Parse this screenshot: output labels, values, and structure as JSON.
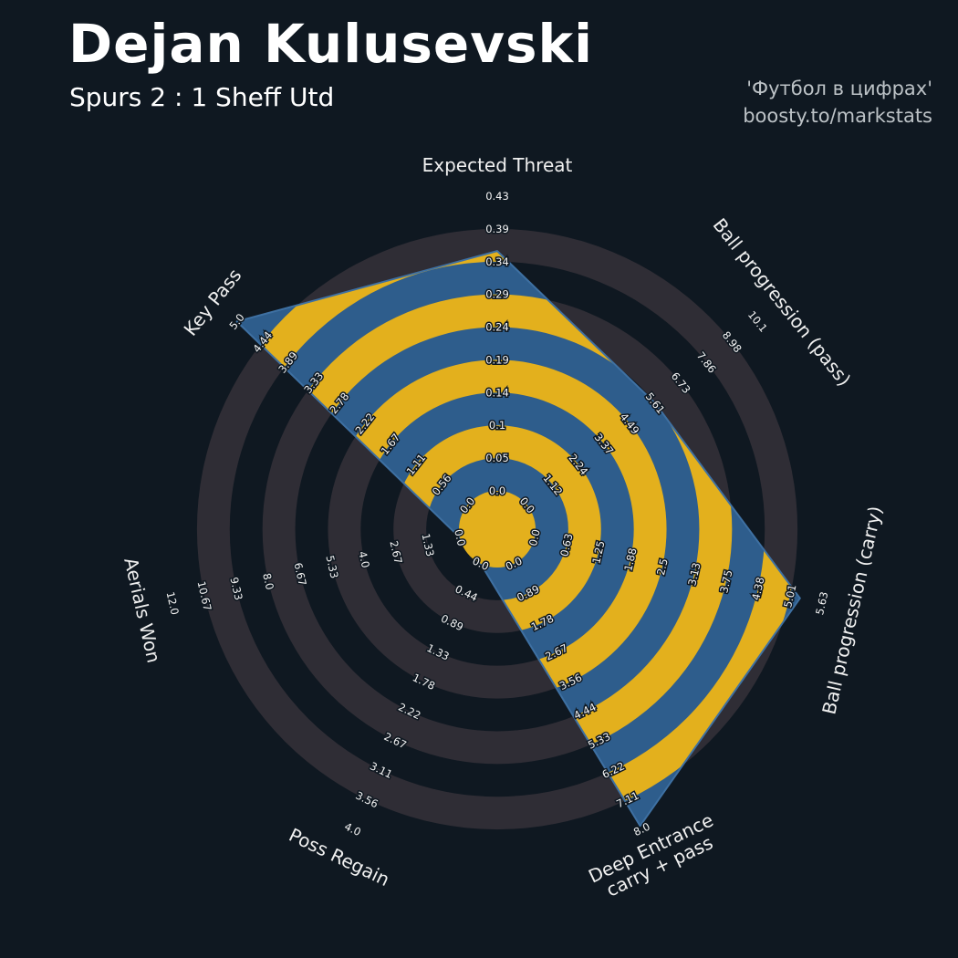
{
  "header": {
    "title": "Dejan Kulusevski",
    "subtitle": "Spurs 2 : 1 Sheff Utd",
    "watermark_line1": "'Футбол в цифрах'",
    "watermark_line2": "boosty.to/markstats"
  },
  "chart_data": {
    "type": "radar",
    "title": "Dejan Kulusevski — match radar",
    "legend": "none",
    "grid": "concentric-rings",
    "num_rings": 9,
    "colors": {
      "background": "#0f1821",
      "ring": "#2f2d35",
      "radar_fill": "#2e5d8c",
      "radar_edge": "#3e70a2",
      "radar_rings": "#e3b01d",
      "center_circle": "#e3b01d",
      "tick_text": "#f5f5f5",
      "axis_text": "#f0f0f0"
    },
    "axes": [
      {
        "label": "Expected Threat",
        "label_lines": [
          "Expected Threat"
        ],
        "min": 0,
        "max": 0.43,
        "value": 0.35,
        "ticks": [
          "0.0",
          "0.05",
          "0.1",
          "0.14",
          "0.19",
          "0.24",
          "0.29",
          "0.34",
          "0.39",
          "0.43"
        ]
      },
      {
        "label": "Ball progression (pass)",
        "label_lines": [
          "Ball progression (pass)"
        ],
        "min": 0,
        "max": 10.1,
        "value": 5.61,
        "ticks": [
          "0.0",
          "1.12",
          "2.24",
          "3.37",
          "4.49",
          "5.61",
          "6.73",
          "7.86",
          "8.98",
          "10.1"
        ]
      },
      {
        "label": "Ball progression (carry)",
        "label_lines": [
          "Ball progression (carry)"
        ],
        "min": 0,
        "max": 5.63,
        "value": 5.2,
        "ticks": [
          "0.0",
          "0.63",
          "1.25",
          "1.88",
          "2.5",
          "3.13",
          "3.75",
          "4.38",
          "5.01",
          "5.63"
        ]
      },
      {
        "label": "Deep Entrance carry + pass",
        "label_lines": [
          "Deep Entrance",
          "carry + pass"
        ],
        "min": 0,
        "max": 8.0,
        "value": 7.9,
        "ticks": [
          "0.0",
          "0.89",
          "1.78",
          "2.67",
          "3.56",
          "4.44",
          "5.33",
          "6.22",
          "7.11",
          "8.0"
        ]
      },
      {
        "label": "Poss Regain",
        "label_lines": [
          "Poss Regain"
        ],
        "min": 0,
        "max": 4.0,
        "value": 0.0,
        "ticks": [
          "0.0",
          "0.44",
          "0.89",
          "1.33",
          "1.78",
          "2.22",
          "2.67",
          "3.11",
          "3.56",
          "4.0"
        ]
      },
      {
        "label": "Aerials Won",
        "label_lines": [
          "Aerials Won"
        ],
        "min": 0,
        "max": 12.0,
        "value": 0.0,
        "ticks": [
          "0.0",
          "1.33",
          "2.67",
          "4.0",
          "5.33",
          "6.67",
          "8.0",
          "9.33",
          "10.67",
          "12.0"
        ]
      },
      {
        "label": "Key Pass",
        "label_lines": [
          "Key Pass"
        ],
        "min": 0,
        "max": 5.0,
        "value": 5.0,
        "ticks": [
          "0.0",
          "0.56",
          "1.11",
          "1.67",
          "2.22",
          "2.78",
          "3.33",
          "3.89",
          "4.44",
          "5.0"
        ]
      }
    ]
  }
}
